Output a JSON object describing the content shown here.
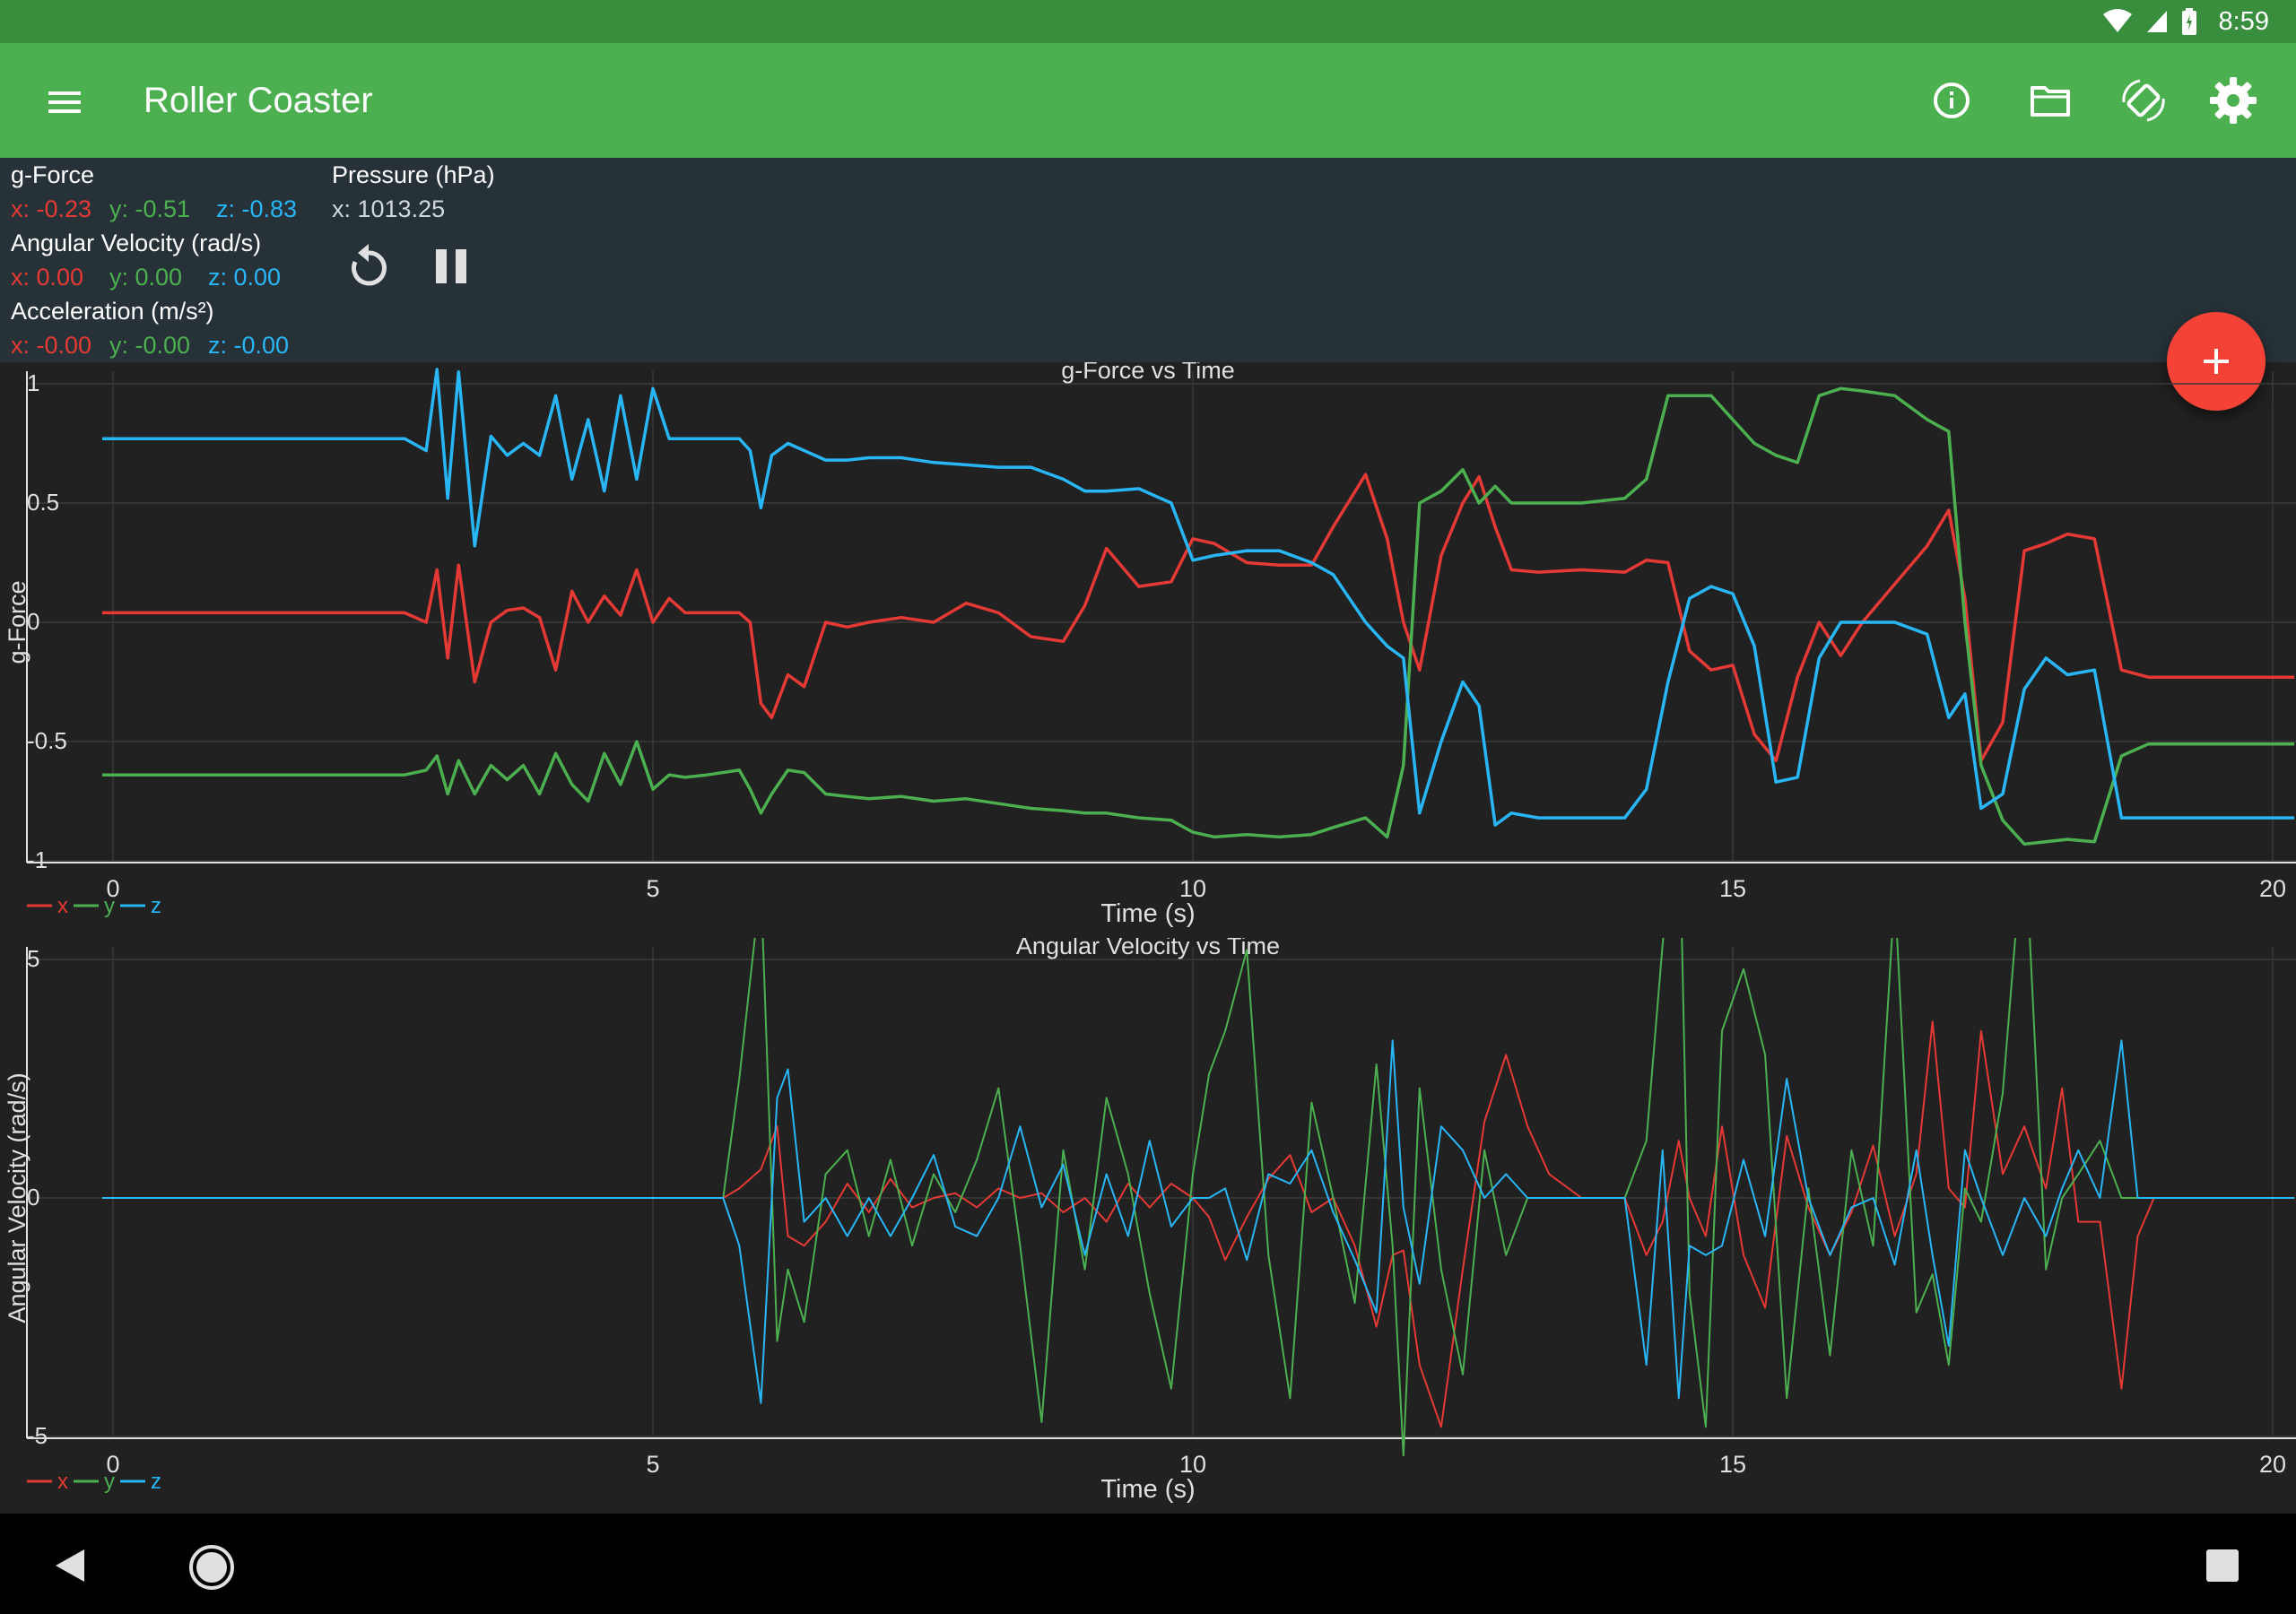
{
  "status_bar": {
    "time": "8:59"
  },
  "app_bar": {
    "title": "Roller Coaster",
    "icons": [
      "menu-icon",
      "info-icon",
      "folder-icon",
      "screen-rotation-icon",
      "settings-icon"
    ]
  },
  "readouts": {
    "gforce": {
      "label": "g-Force",
      "x": "x: -0.23",
      "y": "y: -0.51",
      "z": "z: -0.83"
    },
    "angular": {
      "label": "Angular Velocity (rad/s)",
      "x": "x: 0.00",
      "y": "y: 0.00",
      "z": "z: 0.00"
    },
    "accel": {
      "label": "Acceleration (m/s²)",
      "x": "x: -0.00",
      "y": "y: -0.00",
      "z": "z: -0.00"
    },
    "pressure": {
      "label": "Pressure (hPa)",
      "x": "x: 1013.25"
    }
  },
  "controls": {
    "icons": [
      "reset-icon",
      "pause-icon",
      "add-icon"
    ]
  },
  "colors": {
    "x": "#e53935",
    "y": "#4caf50",
    "z": "#29b6f6",
    "app_bar": "#4caf50",
    "status_bar": "#388e3c",
    "fab": "#f44336"
  },
  "chart_data": [
    {
      "type": "line",
      "title": "g-Force vs Time",
      "xlabel": "Time (s)",
      "ylabel": "g-Force",
      "xlim": [
        0,
        20
      ],
      "ylim": [
        -1,
        1
      ],
      "xticks": [
        "0",
        "5",
        "10",
        "15",
        "20"
      ],
      "yticks": [
        "1",
        "0.5",
        "0",
        "-0.5",
        "-1"
      ],
      "grid": true,
      "legend": [
        "x",
        "y",
        "z"
      ],
      "legend_position": "bottom-left",
      "x": [
        -0.1,
        2.7,
        2.9,
        3.0,
        3.1,
        3.2,
        3.35,
        3.5,
        3.65,
        3.8,
        3.95,
        4.1,
        4.25,
        4.4,
        4.55,
        4.7,
        4.85,
        5.0,
        5.15,
        5.3,
        5.5,
        5.8,
        5.9,
        6.0,
        6.1,
        6.25,
        6.4,
        6.6,
        6.8,
        7.0,
        7.3,
        7.6,
        7.9,
        8.2,
        8.5,
        8.8,
        9.0,
        9.2,
        9.5,
        9.8,
        10.0,
        10.2,
        10.5,
        10.8,
        11.1,
        11.3,
        11.6,
        11.8,
        11.95,
        12.1,
        12.3,
        12.5,
        12.65,
        12.8,
        12.95,
        13.2,
        13.6,
        14.0,
        14.2,
        14.4,
        14.6,
        14.8,
        15.0,
        15.2,
        15.4,
        15.6,
        15.8,
        16.0,
        16.2,
        16.5,
        16.8,
        17.0,
        17.15,
        17.3,
        17.5,
        17.7,
        17.9,
        18.1,
        18.35,
        18.6,
        18.85,
        19.1,
        19.5,
        20.2
      ],
      "series": [
        {
          "name": "x",
          "values": [
            0.04,
            0.04,
            0.0,
            0.22,
            -0.15,
            0.24,
            -0.25,
            0.0,
            0.05,
            0.06,
            0.02,
            -0.2,
            0.13,
            0.0,
            0.11,
            0.03,
            0.22,
            0.0,
            0.1,
            0.04,
            0.04,
            0.04,
            0.0,
            -0.34,
            -0.4,
            -0.22,
            -0.27,
            0.0,
            -0.02,
            0.0,
            0.02,
            0.0,
            0.08,
            0.04,
            -0.06,
            -0.08,
            0.07,
            0.31,
            0.15,
            0.17,
            0.35,
            0.33,
            0.25,
            0.24,
            0.24,
            0.4,
            0.62,
            0.35,
            0.0,
            -0.2,
            0.28,
            0.5,
            0.61,
            0.4,
            0.22,
            0.21,
            0.22,
            0.21,
            0.26,
            0.25,
            -0.12,
            -0.2,
            -0.18,
            -0.47,
            -0.58,
            -0.23,
            0.0,
            -0.14,
            0.0,
            0.16,
            0.32,
            0.47,
            0.1,
            -0.58,
            -0.42,
            0.3,
            0.33,
            0.37,
            0.35,
            -0.2,
            -0.23,
            -0.23,
            -0.23,
            -0.23
          ]
        },
        {
          "name": "y",
          "values": [
            -0.64,
            -0.64,
            -0.62,
            -0.56,
            -0.72,
            -0.58,
            -0.72,
            -0.6,
            -0.66,
            -0.6,
            -0.72,
            -0.55,
            -0.68,
            -0.75,
            -0.55,
            -0.68,
            -0.5,
            -0.7,
            -0.64,
            -0.65,
            -0.64,
            -0.62,
            -0.7,
            -0.8,
            -0.72,
            -0.62,
            -0.63,
            -0.72,
            -0.73,
            -0.74,
            -0.73,
            -0.75,
            -0.74,
            -0.76,
            -0.78,
            -0.79,
            -0.8,
            -0.8,
            -0.82,
            -0.83,
            -0.88,
            -0.9,
            -0.89,
            -0.9,
            -0.89,
            -0.86,
            -0.82,
            -0.9,
            -0.6,
            0.5,
            0.55,
            0.64,
            0.5,
            0.57,
            0.5,
            0.5,
            0.5,
            0.52,
            0.6,
            0.95,
            0.95,
            0.95,
            0.85,
            0.75,
            0.7,
            0.67,
            0.95,
            0.98,
            0.97,
            0.95,
            0.85,
            0.8,
            0.0,
            -0.6,
            -0.83,
            -0.93,
            -0.92,
            -0.91,
            -0.92,
            -0.56,
            -0.51,
            -0.51,
            -0.51,
            -0.51
          ]
        },
        {
          "name": "z",
          "values": [
            0.77,
            0.77,
            0.72,
            1.06,
            0.52,
            1.05,
            0.32,
            0.78,
            0.7,
            0.75,
            0.7,
            0.95,
            0.6,
            0.85,
            0.55,
            0.95,
            0.6,
            0.98,
            0.77,
            0.77,
            0.77,
            0.77,
            0.72,
            0.48,
            0.7,
            0.75,
            0.72,
            0.68,
            0.68,
            0.69,
            0.69,
            0.67,
            0.66,
            0.65,
            0.65,
            0.6,
            0.55,
            0.55,
            0.56,
            0.5,
            0.26,
            0.28,
            0.3,
            0.3,
            0.25,
            0.2,
            0.0,
            -0.1,
            -0.15,
            -0.8,
            -0.5,
            -0.25,
            -0.35,
            -0.85,
            -0.8,
            -0.82,
            -0.82,
            -0.82,
            -0.7,
            -0.25,
            0.1,
            0.15,
            0.12,
            -0.1,
            -0.67,
            -0.65,
            -0.15,
            0.0,
            0.0,
            0.0,
            -0.05,
            -0.4,
            -0.3,
            -0.78,
            -0.72,
            -0.28,
            -0.15,
            -0.22,
            -0.2,
            -0.82,
            -0.82,
            -0.82,
            -0.82,
            -0.82
          ]
        }
      ]
    },
    {
      "type": "line",
      "title": "Angular Velocity vs Time",
      "xlabel": "Time (s)",
      "ylabel": "Angular Velocity (rad/s)",
      "xlim": [
        0,
        20
      ],
      "ylim": [
        -5,
        5
      ],
      "xticks": [
        "0",
        "5",
        "10",
        "15",
        "20"
      ],
      "yticks": [
        "5",
        "0",
        "-5"
      ],
      "grid": true,
      "legend": [
        "x",
        "y",
        "z"
      ],
      "legend_position": "bottom-left",
      "x": [
        -0.1,
        5.65,
        5.8,
        6.0,
        6.15,
        6.25,
        6.4,
        6.6,
        6.8,
        7.0,
        7.2,
        7.4,
        7.6,
        7.8,
        8.0,
        8.2,
        8.4,
        8.6,
        8.8,
        9.0,
        9.2,
        9.4,
        9.6,
        9.8,
        10.0,
        10.15,
        10.3,
        10.5,
        10.7,
        10.9,
        11.1,
        11.3,
        11.5,
        11.7,
        11.85,
        11.95,
        12.1,
        12.3,
        12.5,
        12.7,
        12.9,
        13.1,
        13.3,
        13.6,
        14.0,
        14.2,
        14.35,
        14.5,
        14.6,
        14.75,
        14.9,
        15.1,
        15.3,
        15.5,
        15.7,
        15.9,
        16.1,
        16.3,
        16.5,
        16.7,
        16.85,
        17.0,
        17.15,
        17.3,
        17.5,
        17.7,
        17.9,
        18.05,
        18.2,
        18.4,
        18.6,
        18.75,
        18.9,
        20.2
      ],
      "series": [
        {
          "name": "x",
          "values": [
            0,
            0,
            0.2,
            0.6,
            1.5,
            -0.8,
            -1.0,
            -0.5,
            0.3,
            -0.3,
            0.4,
            -0.2,
            0.0,
            0.1,
            -0.2,
            0.2,
            0.0,
            0.1,
            -0.3,
            0.0,
            -0.5,
            0.3,
            -0.2,
            0.3,
            0.0,
            -0.4,
            -1.3,
            -0.4,
            0.4,
            0.9,
            -0.3,
            0.0,
            -1.0,
            -2.7,
            -1.2,
            -1.1,
            -3.5,
            -4.8,
            -1.5,
            1.6,
            3.0,
            1.5,
            0.5,
            0.0,
            0.0,
            -1.2,
            -0.5,
            1.2,
            0.0,
            -0.8,
            1.5,
            -1.2,
            -2.3,
            1.3,
            -0.2,
            -1.2,
            -0.3,
            1.1,
            -0.8,
            0.5,
            3.7,
            0.2,
            -0.2,
            3.5,
            0.5,
            1.5,
            0.2,
            2.3,
            -0.5,
            -0.5,
            -4.0,
            -0.8,
            0.0,
            0.0
          ]
        },
        {
          "name": "y",
          "values": [
            0,
            0,
            2.5,
            6.6,
            -3.0,
            -1.5,
            -2.6,
            0.5,
            1.0,
            -0.8,
            0.8,
            -1.0,
            0.5,
            -0.3,
            0.8,
            2.3,
            -1.0,
            -4.7,
            1.0,
            -1.5,
            2.1,
            0.5,
            -2.0,
            -4.0,
            0.5,
            2.6,
            3.5,
            5.2,
            -1.2,
            -4.2,
            2.0,
            0.0,
            -2.2,
            2.8,
            -1.0,
            -5.4,
            2.3,
            -1.5,
            -3.7,
            1.0,
            -1.2,
            0.0,
            0.0,
            0.0,
            0.0,
            1.2,
            5.3,
            8.5,
            -2.0,
            -4.8,
            3.5,
            4.8,
            3.0,
            -4.2,
            0.2,
            -3.3,
            1.0,
            -1.0,
            6.4,
            -2.4,
            -1.6,
            -3.5,
            0.2,
            -0.5,
            2.2,
            7.8,
            -1.5,
            0.0,
            0.5,
            1.2,
            0.0,
            0.0,
            0.0,
            0.0
          ]
        },
        {
          "name": "z",
          "values": [
            0,
            0,
            -1.0,
            -4.3,
            2.1,
            2.7,
            -0.5,
            0.0,
            -0.8,
            0.0,
            -0.8,
            0.0,
            0.9,
            -0.6,
            -0.8,
            0.0,
            1.5,
            -0.2,
            0.7,
            -1.2,
            0.5,
            -0.8,
            1.2,
            -0.6,
            0.0,
            0.0,
            0.2,
            -1.3,
            0.5,
            0.3,
            1.0,
            -0.3,
            -1.3,
            -2.4,
            3.3,
            -0.2,
            -1.8,
            1.5,
            1.0,
            0.0,
            0.5,
            0.0,
            0.0,
            0.0,
            0.0,
            -3.5,
            1.0,
            -4.2,
            -1.0,
            -1.2,
            -1.0,
            0.8,
            -0.8,
            2.5,
            0.0,
            -1.2,
            -0.2,
            0.0,
            -1.4,
            1.0,
            -1.2,
            -3.1,
            1.0,
            0.0,
            -1.2,
            0.0,
            -0.8,
            0.2,
            1.0,
            0.0,
            3.3,
            0.0,
            0.0,
            0.0
          ]
        }
      ]
    }
  ],
  "nav_bar": {
    "icons": [
      "back-icon",
      "home-icon",
      "recents-icon"
    ]
  }
}
